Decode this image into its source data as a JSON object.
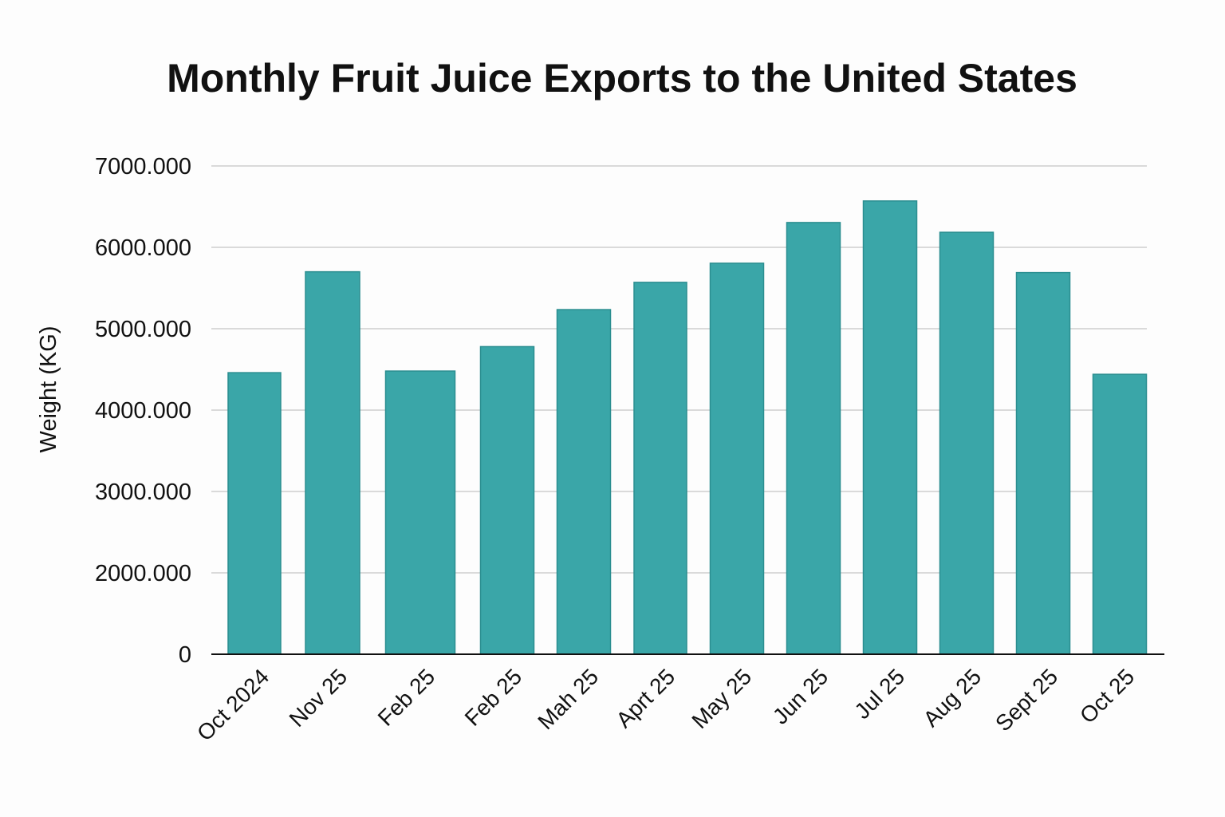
{
  "chart_data": {
    "type": "bar",
    "title": "Monthly Fruit Juice Exports to the United States",
    "xlabel": "",
    "ylabel": "Weight (KG)",
    "categories": [
      "Oct 2024",
      "Nov 25",
      "Feb 25",
      "Feb 25",
      "Mah 25",
      "Aprt 25",
      "May 25",
      "Jun 25",
      "Jul 25",
      "Aug 25",
      "Sept 25",
      "Oct 25"
    ],
    "values": [
      4460,
      5700,
      4480,
      4780,
      5235,
      5570,
      5805,
      6305,
      6570,
      6185,
      5690,
      4440
    ],
    "y_ticks": [
      0,
      2000,
      3000,
      4000,
      5000,
      6000,
      7000
    ],
    "y_tick_labels": [
      "0",
      "2000.000",
      "3000.000",
      "4000.000",
      "5000.000",
      "6000.000",
      "7000.000"
    ],
    "ylim": [
      0,
      7000
    ],
    "grid": true,
    "legend": "none",
    "colors": {
      "bar": "#3aa6a8",
      "bar_edge": "#2b8e90"
    }
  }
}
